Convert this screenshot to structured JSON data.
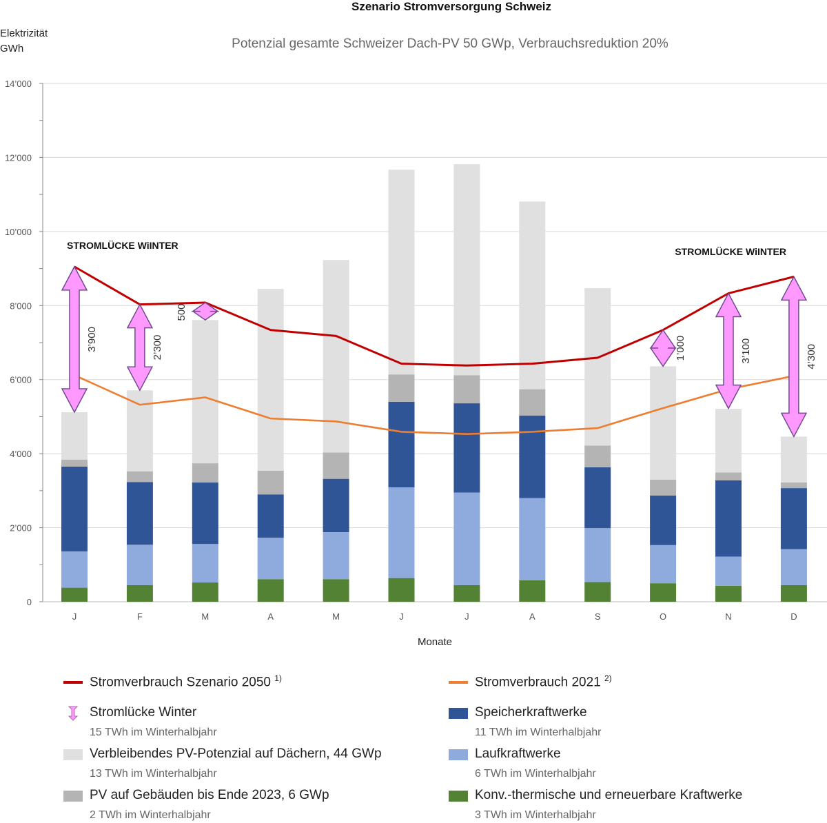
{
  "title": "Szenario Stromversorgung Schweiz",
  "subtitle": "Potenzial gesamte Schweizer Dach-PV 50 GWp, Verbrauchsreduktion 20%",
  "y_axis_title": [
    "Elektrizität",
    "GWh"
  ],
  "x_axis_title": "Monate",
  "colors": {
    "konv": "#548235",
    "lauf": "#8faadc",
    "speicher": "#2f5597",
    "pv2023": "#b4b4b4",
    "pvpot": "#e0e0e0",
    "line2050": "#c00000",
    "line2021": "#ed7d31",
    "gap": "#ff99ff"
  },
  "chart_data": {
    "type": "bar",
    "stacked": true,
    "categories": [
      "J",
      "F",
      "M",
      "A",
      "M",
      "J",
      "J",
      "A",
      "S",
      "O",
      "N",
      "D"
    ],
    "ylim": [
      0,
      14000
    ],
    "yticks": [
      0,
      2000,
      4000,
      6000,
      8000,
      10000,
      12000,
      14000
    ],
    "ytick_labels": [
      "0",
      "2’000",
      "4’000",
      "6’000",
      "8’000",
      "10’000",
      "12’000",
      "14’000"
    ],
    "grid": true,
    "series": [
      {
        "name": "Konv.-thermische und erneuerbare Kraftwerke",
        "kind": "bar",
        "color_key": "konv",
        "values": [
          380,
          450,
          520,
          610,
          610,
          640,
          450,
          580,
          530,
          500,
          430,
          450
        ]
      },
      {
        "name": "Laufkraftwerke",
        "kind": "bar",
        "color_key": "lauf",
        "values": [
          980,
          1090,
          1040,
          1120,
          1270,
          2450,
          2500,
          2220,
          1460,
          1030,
          790,
          970
        ]
      },
      {
        "name": "Speicherkraftwerke",
        "kind": "bar",
        "color_key": "speicher",
        "values": [
          2290,
          1690,
          1660,
          1170,
          1440,
          2310,
          2410,
          2230,
          1640,
          1340,
          2060,
          1650
        ]
      },
      {
        "name": "PV auf Gebäuden bis Ende 2023, 6 GWp",
        "kind": "bar",
        "color_key": "pv2023",
        "values": [
          190,
          290,
          520,
          640,
          710,
          740,
          760,
          710,
          590,
          430,
          210,
          150
        ]
      },
      {
        "name": "Verbleibendes PV-Potenzial auf Dächern, 44 GWp",
        "kind": "bar",
        "color_key": "pvpot",
        "values": [
          1280,
          2190,
          3870,
          4910,
          5200,
          5530,
          5700,
          5070,
          4250,
          3060,
          1720,
          1240
        ]
      },
      {
        "name": "Stromverbrauch Szenario 2050",
        "kind": "line",
        "color_key": "line2050",
        "values": [
          9050,
          8030,
          8080,
          7340,
          7180,
          6430,
          6380,
          6430,
          6590,
          7340,
          8330,
          8780
        ]
      },
      {
        "name": "Stromverbrauch 2021",
        "kind": "line",
        "color_key": "line2021",
        "values": [
          6120,
          5320,
          5520,
          4950,
          4870,
          4590,
          4530,
          4590,
          4690,
          5230,
          5740,
          6100
        ]
      }
    ],
    "gap_arrows": [
      {
        "month_index": 0,
        "from": 5120,
        "to": 9050,
        "label": "3’900"
      },
      {
        "month_index": 1,
        "from": 5710,
        "to": 8030,
        "label": "2’300"
      },
      {
        "month_index": 2,
        "from": 7610,
        "to": 8080,
        "label": "500"
      },
      {
        "month_index": 9,
        "from": 6360,
        "to": 7340,
        "label": "1’000"
      },
      {
        "month_index": 10,
        "from": 5220,
        "to": 8330,
        "label": "3’100"
      },
      {
        "month_index": 11,
        "from": 4460,
        "to": 8780,
        "label": "4’300"
      }
    ],
    "annotations": [
      {
        "text": "STROMLÜCKE WiINTER",
        "position": "top-left"
      },
      {
        "text": "STROMLÜCKE WiINTER",
        "position": "top-right"
      }
    ]
  },
  "legend": {
    "line2050": {
      "label": "Stromverbrauch Szenario 2050",
      "note": "1)"
    },
    "line2021": {
      "label": "Stromverbrauch 2021",
      "note": "2)"
    },
    "gap": {
      "label": "Stromlücke Winter",
      "sub": "15 TWh im Winterhalbjahr"
    },
    "speicher": {
      "label": "Speicherkraftwerke",
      "sub": "11 TWh im Winterhalbjahr"
    },
    "pvpot": {
      "label": "Verbleibendes PV-Potenzial auf Dächern, 44 GWp",
      "sub": "13 TWh im Winterhalbjahr"
    },
    "lauf": {
      "label": "Laufkraftwerke",
      "sub": "6 TWh im Winterhalbjahr"
    },
    "pv2023": {
      "label": "PV auf Gebäuden bis Ende 2023, 6 GWp",
      "sub": "2 TWh im Winterhalbjahr"
    },
    "konv": {
      "label": "Konv.-thermische und erneuerbare Kraftwerke",
      "sub": "3 TWh im Winterhalbjahr"
    }
  }
}
